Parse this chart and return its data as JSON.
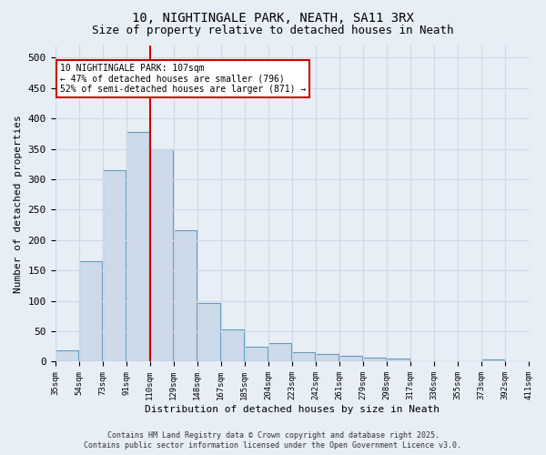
{
  "title_line1": "10, NIGHTINGALE PARK, NEATH, SA11 3RX",
  "title_line2": "Size of property relative to detached houses in Neath",
  "xlabel": "Distribution of detached houses by size in Neath",
  "ylabel": "Number of detached properties",
  "bin_labels": [
    "35sqm",
    "54sqm",
    "73sqm",
    "91sqm",
    "110sqm",
    "129sqm",
    "148sqm",
    "167sqm",
    "185sqm",
    "204sqm",
    "223sqm",
    "242sqm",
    "261sqm",
    "279sqm",
    "298sqm",
    "317sqm",
    "336sqm",
    "355sqm",
    "373sqm",
    "392sqm",
    "411sqm"
  ],
  "bar_heights": [
    18,
    165,
    315,
    378,
    350,
    216,
    97,
    53,
    25,
    30,
    15,
    13,
    10,
    6,
    5,
    0,
    0,
    0,
    4,
    0
  ],
  "bar_color": "#ccdaea",
  "bar_edge_color": "#6699bb",
  "vline_position": 3.5,
  "vline_color": "#cc0000",
  "annotation_text": "10 NIGHTINGALE PARK: 107sqm\n← 47% of detached houses are smaller (796)\n52% of semi-detached houses are larger (871) →",
  "annotation_box_facecolor": "#ffffff",
  "annotation_box_edgecolor": "#cc0000",
  "background_color": "#e8eef6",
  "grid_color": "#d0d8e8",
  "ylim": [
    0,
    520
  ],
  "yticks": [
    0,
    50,
    100,
    150,
    200,
    250,
    300,
    350,
    400,
    450,
    500
  ],
  "footer_line1": "Contains HM Land Registry data © Crown copyright and database right 2025.",
  "footer_line2": "Contains public sector information licensed under the Open Government Licence v3.0."
}
